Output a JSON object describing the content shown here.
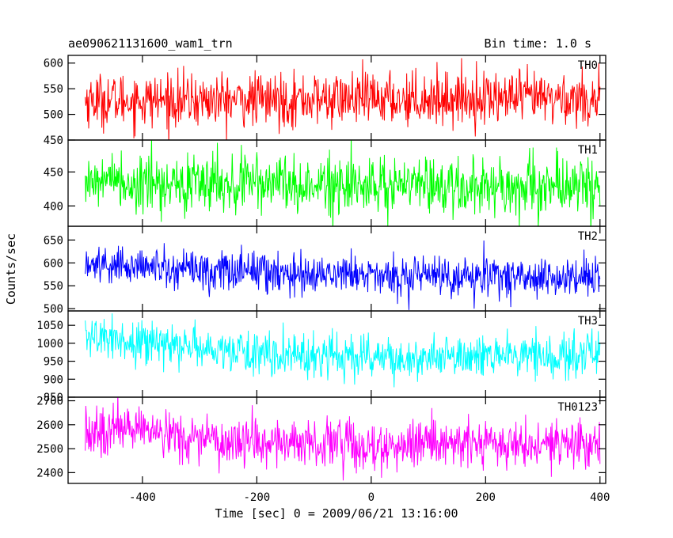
{
  "header": {
    "title": "ae090621131600_wam1_trn",
    "bin_time": "Bin time: 1.0 s"
  },
  "chart_data": {
    "type": "line",
    "xlabel": "Time [sec] 0 = 2009/06/21 13:16:00",
    "ylabel": "Counts/sec",
    "xlim": [
      -530,
      410
    ],
    "xticks": [
      -400,
      -200,
      0,
      200,
      400
    ],
    "x_data_range": [
      -500,
      400
    ],
    "bin_seconds": 1.0,
    "panels": [
      {
        "name": "TH0",
        "color": "#ff0000",
        "ylim": [
          450,
          615
        ],
        "yticks": [
          450,
          500,
          550,
          600
        ],
        "mean": 530,
        "noise": 26,
        "trend": [
          [
            -500,
            528
          ],
          [
            -300,
            527
          ],
          [
            0,
            530
          ],
          [
            200,
            532
          ],
          [
            400,
            530
          ]
        ]
      },
      {
        "name": "TH1",
        "color": "#00ff00",
        "ylim": [
          370,
          497
        ],
        "yticks": [
          400,
          450
        ],
        "mean": 432,
        "noise": 22,
        "trend": [
          [
            -500,
            438
          ],
          [
            -300,
            432
          ],
          [
            0,
            430
          ],
          [
            200,
            430
          ],
          [
            400,
            428
          ]
        ]
      },
      {
        "name": "TH2",
        "color": "#0000ff",
        "ylim": [
          495,
          680
        ],
        "yticks": [
          500,
          550,
          600,
          650
        ],
        "mean": 575,
        "noise": 22,
        "trend": [
          [
            -500,
            597
          ],
          [
            -300,
            585
          ],
          [
            -100,
            578
          ],
          [
            100,
            572
          ],
          [
            400,
            568
          ]
        ]
      },
      {
        "name": "TH3",
        "color": "#00ffff",
        "ylim": [
          850,
          1090
        ],
        "yticks": [
          850,
          900,
          950,
          1000,
          1050
        ],
        "mean": 975,
        "noise": 30,
        "trend": [
          [
            -500,
            1018
          ],
          [
            -300,
            985
          ],
          [
            -100,
            965
          ],
          [
            100,
            962
          ],
          [
            400,
            965
          ]
        ]
      },
      {
        "name": "TH0123",
        "color": "#ff00ff",
        "ylim": [
          2355,
          2715
        ],
        "yticks": [
          2400,
          2500,
          2600,
          2700
        ],
        "mean": 2535,
        "noise": 50,
        "trend": [
          [
            -500,
            2578
          ],
          [
            -300,
            2548
          ],
          [
            -100,
            2520
          ],
          [
            100,
            2515
          ],
          [
            400,
            2515
          ]
        ]
      }
    ]
  }
}
